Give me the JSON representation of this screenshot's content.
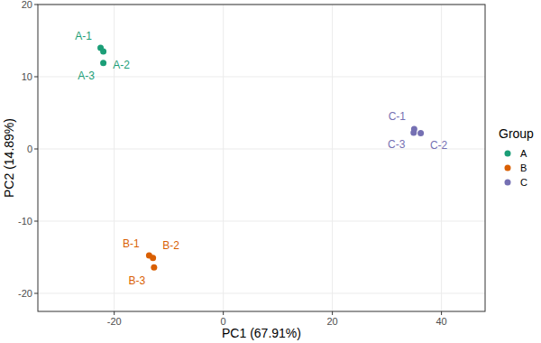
{
  "chart_data": {
    "type": "scatter",
    "x_label": "PC1 (67.91%)",
    "y_label": "PC2 (14.89%)",
    "legend_title": "Group",
    "legend": "right",
    "grid": true,
    "marker": "circle",
    "xlim": [
      -34,
      48
    ],
    "xticks": [
      -20,
      0,
      20,
      40
    ],
    "ylim": [
      -22.5,
      20
    ],
    "yticks": [
      -20,
      -10,
      0,
      10,
      20
    ],
    "series": [
      {
        "name": "A",
        "color": "#1b9e77",
        "x": [
          -22.5,
          -22.0,
          -22.0
        ],
        "values": [
          14.0,
          13.5,
          11.9
        ],
        "labels": [
          "A-1",
          "A-2",
          "A-3"
        ]
      },
      {
        "name": "B",
        "color": "#d95f02",
        "x": [
          -13.6,
          -12.9,
          -12.7
        ],
        "values": [
          -14.75,
          -15.1,
          -16.4
        ],
        "labels": [
          "B-1",
          "B-2",
          "B-3"
        ]
      },
      {
        "name": "C",
        "color": "#7570b3",
        "x": [
          35.0,
          36.2,
          34.9
        ],
        "values": [
          2.75,
          2.2,
          2.25
        ],
        "labels": [
          "C-1",
          "C-2",
          "C-3"
        ]
      }
    ]
  }
}
